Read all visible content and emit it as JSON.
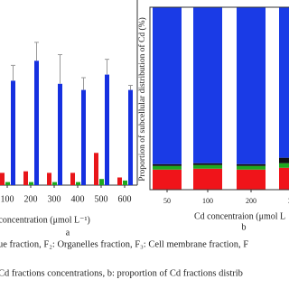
{
  "chart_data": [
    {
      "type": "bar",
      "x_label": "Cd concentration (μmol L⁻¹)",
      "panel": "a",
      "categories": [
        "100",
        "200",
        "300",
        "400",
        "500",
        "600"
      ],
      "series": [
        {
          "color": "#e8161a",
          "values": [
            8,
            9,
            8,
            8,
            21,
            5
          ]
        },
        {
          "color": "#1ea81e",
          "values": [
            2,
            2,
            2,
            2,
            4,
            3
          ]
        },
        {
          "color": "#1530e0",
          "values": [
            68,
            81,
            66,
            62,
            72,
            62
          ],
          "errors": [
            10,
            12,
            19,
            8,
            10,
            3
          ]
        }
      ],
      "ylim": [
        0,
        100
      ]
    },
    {
      "type": "stacked-bar",
      "x_label": "Cd concentraion (μmol L",
      "y_label": "Proportion of subcellular distribution of Cd (%)",
      "panel": "b",
      "categories": [
        "50",
        "100",
        "200",
        "300"
      ],
      "series": [
        {
          "color": "#f0141a",
          "values": [
            11,
            11.5,
            11,
            12
          ]
        },
        {
          "color": "#1ea81e",
          "values": [
            2,
            2,
            2,
            2.5
          ]
        },
        {
          "color": "#111111",
          "values": [
            1,
            1,
            1,
            3
          ]
        },
        {
          "color": "#1a3be6",
          "values": [
            86,
            85.5,
            86,
            82.5
          ]
        }
      ],
      "ylim": [
        0,
        100
      ]
    }
  ],
  "caption": [
    "ue fraction, F₂: Organelles fraction, F₃: Cell membrane fraction, F",
    "Cd fractions concentrations, b:  proportion of Cd fractions distrib"
  ]
}
